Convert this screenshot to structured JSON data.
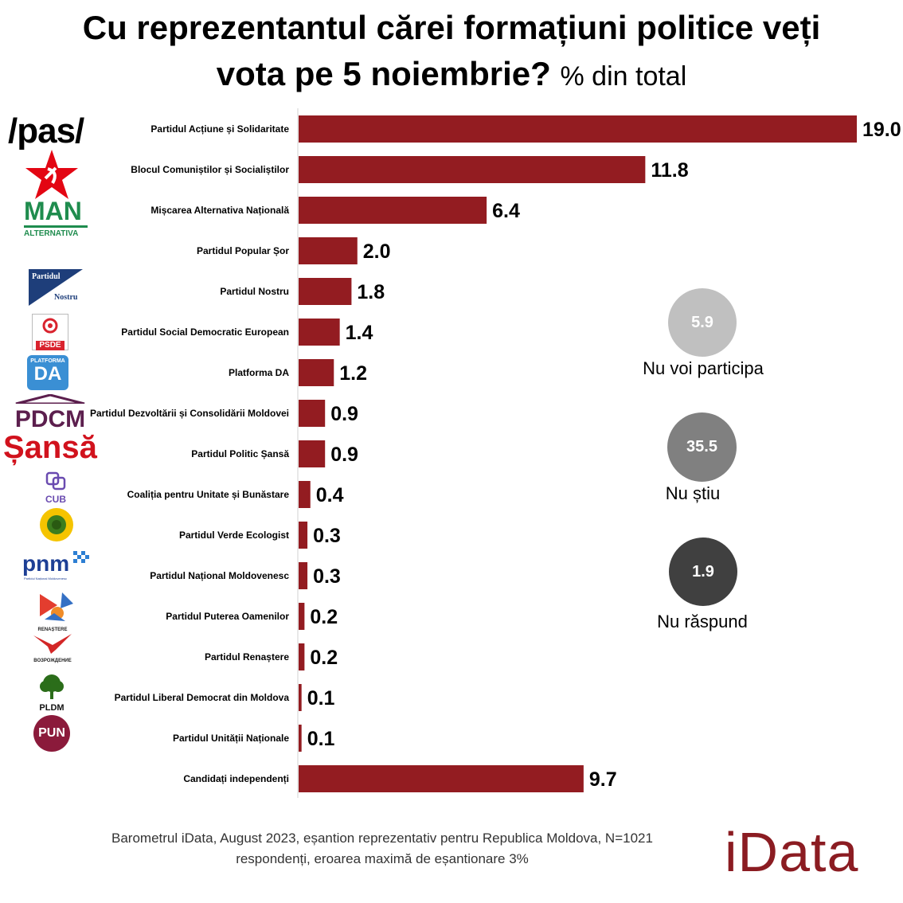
{
  "title": {
    "line1": "Cu reprezentantul cărei formațiuni politice veți",
    "line2": "vota pe 5 noiembrie?",
    "unit": "% din total"
  },
  "chart_data": {
    "type": "bar",
    "orientation": "horizontal",
    "categories": [
      "Partidul Acțiune și Solidaritate",
      "Blocul Comuniștilor și Socialiștilor",
      "Mișcarea Alternativa Națională",
      "Partidul Popular Șor",
      "Partidul Nostru",
      "Partidul Social Democratic European",
      "Platforma DA",
      "Partidul Dezvoltării și Consolidării Moldovei",
      "Partidul Politic Șansă",
      "Coaliția pentru Unitate și Bunăstare",
      "Partidul Verde Ecologist",
      "Partidul Național Moldovenesc",
      "Partidul Puterea Oamenilor",
      "Partidul Renaștere",
      "Partidul Liberal Democrat din Moldova",
      "Partidul Unității Naționale",
      "Candidați independenți"
    ],
    "values": [
      19.0,
      11.8,
      6.4,
      2.0,
      1.8,
      1.4,
      1.2,
      0.9,
      0.9,
      0.4,
      0.3,
      0.3,
      0.2,
      0.2,
      0.1,
      0.1,
      9.7
    ],
    "value_labels": [
      "19.0",
      "11.8",
      "6.4",
      "2.0",
      "1.8",
      "1.4",
      "1.2",
      "0.9",
      "0.9",
      "0.4",
      "0.3",
      "0.3",
      "0.2",
      "0.2",
      "0.1",
      "0.1",
      "9.7"
    ],
    "xlim": [
      0,
      19.0
    ],
    "bar_color": "#931c21",
    "grid": false,
    "legend": "none"
  },
  "logos": {
    "pas": "/pas/",
    "man": "MAN",
    "man_sub": "ALTERNATIVA",
    "nostru_top": "Partidul",
    "nostru_bottom": "Nostru",
    "psde": "PSDE",
    "da_top": "PLATFORMA",
    "da": "DA",
    "pdcm": "PDCM",
    "sansa": "Șansă",
    "cub": "CUB",
    "pnm": "pnm",
    "pnm_sub": "Partidul Național Moldovenesc",
    "renastere_top": "RENAȘTERE",
    "renastere_bottom": "ВОЗРОЖДЕНИЕ",
    "pldm": "PLDM",
    "pun": "PUN"
  },
  "side_stats": [
    {
      "value": "5.9",
      "label": "Nu voi participa",
      "color": "#c0c0c0"
    },
    {
      "value": "35.5",
      "label": "Nu știu",
      "color": "#808080"
    },
    {
      "value": "1.9",
      "label": "Nu răspund",
      "color": "#404040"
    }
  ],
  "footer": {
    "line1": "Barometrul iData, August 2023, eșantion reprezentativ pentru Republica Moldova, N=1021",
    "line2": "respondenți, eroarea maximă de eșantionare 3%"
  },
  "brand": "iData"
}
